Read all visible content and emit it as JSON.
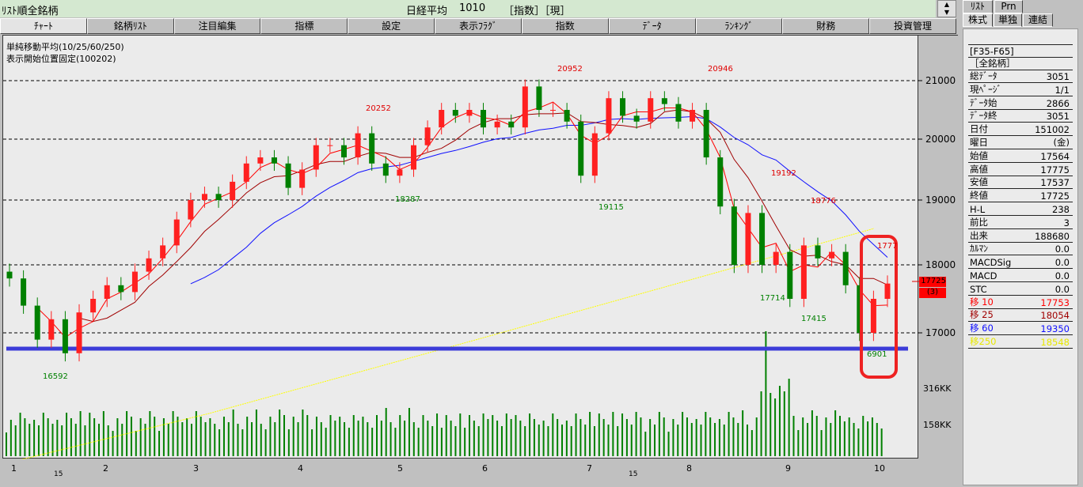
{
  "topbar": {
    "title": "ﾘｽﾄ順全銘柄",
    "index_name": "日経平均",
    "code": "1010",
    "tags": "［指数］［現］"
  },
  "tabs": [
    "ﾁｬｰﾄ",
    "銘柄ﾘｽﾄ",
    "注目編集",
    "指標",
    "設定",
    "表示ﾌﾗｸﾞ",
    "指数",
    "ﾃﾞｰﾀ",
    "ﾗﾝｷﾝｸﾞ",
    "財務",
    "投資管理"
  ],
  "chart_info": {
    "ma_line": "単純移動平均(10/25/60/250)",
    "fixed_start": "表示開始位置固定(100202)"
  },
  "colors": {
    "up": "#ff2020",
    "down": "#008000",
    "ma10": "#ff0000",
    "ma25": "#a00000",
    "ma60": "#1010ff",
    "ma250": "#ffff00",
    "support": "#3c3cd8",
    "highlight": "#ee2222"
  },
  "chart_data": {
    "type": "candlestick",
    "y_ticks": [
      "21000",
      "20000",
      "19000",
      "18000",
      "17000"
    ],
    "volume_ticks": [
      "316KK",
      "158KK"
    ],
    "x_ticks": [
      "1",
      "2",
      "3",
      "4",
      "5",
      "6",
      "7",
      "8",
      "9",
      "10"
    ],
    "x_subticks": [
      "15",
      "15"
    ],
    "closes": [
      17800,
      17400,
      16900,
      17200,
      16700,
      17300,
      17500,
      17700,
      17600,
      17900,
      18100,
      18300,
      18700,
      19000,
      19100,
      19000,
      19300,
      19600,
      19700,
      19600,
      19200,
      19500,
      19900,
      19900,
      19700,
      20100,
      19600,
      19400,
      19500,
      19900,
      20200,
      20500,
      20400,
      20500,
      20200,
      20300,
      20200,
      20900,
      20500,
      20500,
      20300,
      19400,
      20100,
      20700,
      20400,
      20300,
      20700,
      20600,
      20300,
      20500,
      19700,
      18900,
      18000,
      18800,
      18000,
      18200,
      17500,
      18300,
      18100,
      18200,
      17700,
      17000,
      17500,
      17725
    ],
    "annotations": [
      "20952",
      "20252",
      "20946",
      "19192",
      "18776",
      "1777",
      "19115",
      "18287",
      "17714",
      "17415",
      "6901",
      "16592"
    ],
    "last_price": "17725",
    "last_change": "(3)"
  },
  "right_panel": {
    "tabs_top": [
      "ﾘｽﾄ",
      "Prn"
    ],
    "tabs": [
      "株式",
      "単独",
      "連結"
    ],
    "header1": "[F35-F65]",
    "header2": "［全銘柄］",
    "rows": [
      {
        "k": "総ﾃﾞｰﾀ",
        "v": "3051"
      },
      {
        "k": "現ﾍﾟｰｼﾞ",
        "v": "1/1"
      },
      {
        "k": "ﾃﾞｰﾀ始",
        "v": "2866"
      },
      {
        "k": "ﾃﾞｰﾀ終",
        "v": "3051"
      },
      {
        "k": "日付",
        "v": "151002"
      },
      {
        "k": "曜日",
        "v": "(金)"
      },
      {
        "k": "始値",
        "v": "17564"
      },
      {
        "k": "高値",
        "v": "17775"
      },
      {
        "k": "安値",
        "v": "17537"
      },
      {
        "k": "終値",
        "v": "17725"
      },
      {
        "k": "H-L",
        "v": "238"
      },
      {
        "k": "前比",
        "v": "3"
      },
      {
        "k": "出来",
        "v": "188680"
      },
      {
        "k": "ｶﾙﾏﾝ",
        "v": "0.0"
      },
      {
        "k": "MACDSig",
        "v": "0.0"
      },
      {
        "k": "MACD",
        "v": "0.0"
      },
      {
        "k": "STC",
        "v": "0.0"
      },
      {
        "k": "移 10",
        "v": "17753",
        "c": "#ff0000"
      },
      {
        "k": "移 25",
        "v": "18054",
        "c": "#a00000"
      },
      {
        "k": "移 60",
        "v": "19350",
        "c": "#1010ff"
      },
      {
        "k": "移250",
        "v": "18548",
        "c": "#e8e800"
      }
    ]
  }
}
